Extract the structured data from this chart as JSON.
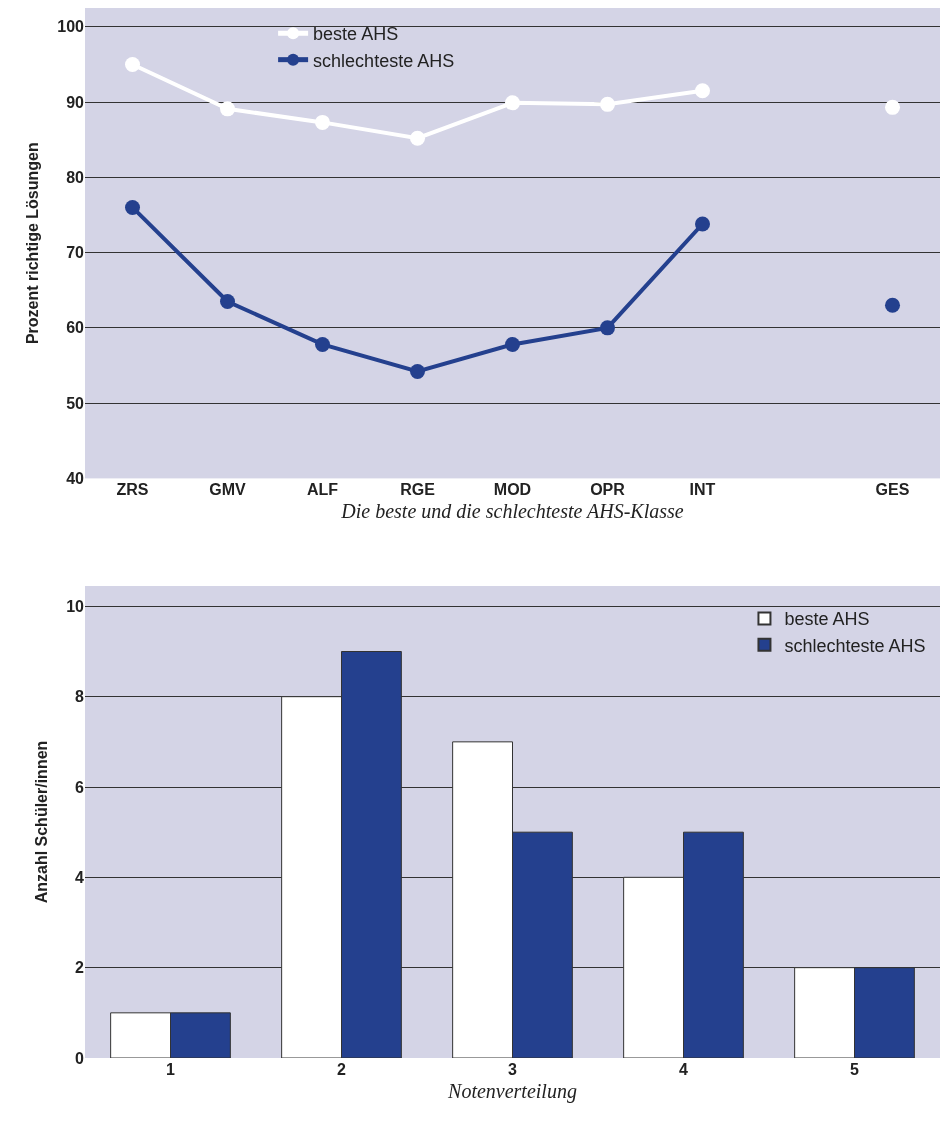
{
  "chart_data": [
    {
      "type": "line",
      "xlabel": "Die beste und die schlechteste AHS-Klasse",
      "ylabel": "Prozent richtige Lösungen",
      "categories": [
        "ZRS",
        "GMV",
        "ALF",
        "RGE",
        "MOD",
        "OPR",
        "INT",
        null,
        "GES"
      ],
      "series": [
        {
          "name": "beste AHS",
          "color": "#ffffff",
          "values": [
            95,
            89.1,
            87.3,
            85.2,
            89.9,
            89.7,
            91.5,
            null,
            89.3
          ]
        },
        {
          "name": "schlechteste AHS",
          "color": "#24408e",
          "values": [
            76,
            63.5,
            57.8,
            54.2,
            57.8,
            60,
            73.8,
            null,
            63
          ]
        }
      ],
      "ylim": [
        40,
        102.5
      ],
      "yticks": [
        40,
        50,
        60,
        70,
        80,
        90,
        100
      ],
      "grid": "y",
      "legend": "top left",
      "marker": "circle",
      "line_style": "solid"
    },
    {
      "type": "bar",
      "xlabel": "Notenverteilung",
      "ylabel": "Anzahl Schüler/innen",
      "categories": [
        "1",
        "2",
        "3",
        "4",
        "5"
      ],
      "series": [
        {
          "name": "beste AHS",
          "color": "#ffffff",
          "values": [
            1,
            8,
            7,
            4,
            2
          ]
        },
        {
          "name": "schlechteste AHS",
          "color": "#24408e",
          "values": [
            1,
            9,
            5,
            5,
            2
          ]
        }
      ],
      "ylim": [
        0,
        10.45
      ],
      "yticks": [
        0,
        2,
        4,
        6,
        8,
        10
      ],
      "grid": "y",
      "legend": "top right"
    }
  ]
}
